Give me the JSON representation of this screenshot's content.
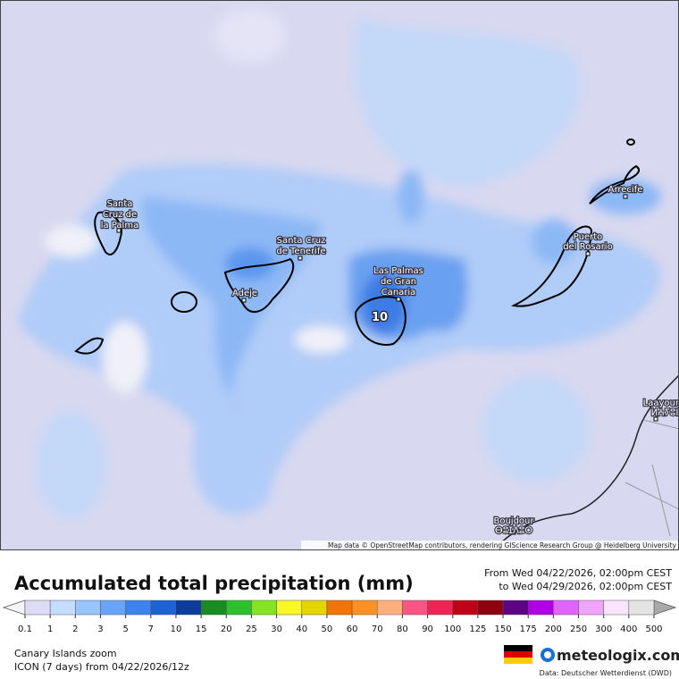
{
  "map": {
    "cities": [
      {
        "lines": [
          "Santa",
          "Cruz de",
          "la Palma"
        ]
      },
      {
        "lines": [
          "Santa Cruz",
          "de Tenerife"
        ]
      },
      {
        "lines": [
          "Adeje"
        ]
      },
      {
        "lines": [
          "Las Palmas",
          "de Gran",
          "Canaria"
        ]
      },
      {
        "lines": [
          "Puerto",
          "del Rosario"
        ]
      },
      {
        "lines": [
          "Arrecife"
        ]
      },
      {
        "lines": [
          "Laayoune",
          "ⵍⵄⵢⵓⵏ"
        ]
      },
      {
        "lines": [
          "Boujdour",
          "ⴱⵓⵊⴷⵓⵔ"
        ]
      }
    ],
    "contour_label": "10",
    "attribution": "Map data © OpenStreetMap contributors, rendering GIScience Research Group @ Heidelberg University"
  },
  "legend": {
    "title": "Accumulated total precipitation (mm)",
    "from": "From Wed 04/22/2026, 02:00pm CEST",
    "to": "to Wed 04/29/2026, 02:00pm CEST",
    "ticks": [
      0.1,
      1,
      2,
      3,
      5,
      7,
      10,
      15,
      20,
      25,
      30,
      40,
      50,
      60,
      70,
      80,
      90,
      100,
      125,
      150,
      175,
      200,
      250,
      300,
      400,
      500
    ],
    "colors": [
      "#dcdcf4",
      "#c4dcff",
      "#98c4ff",
      "#68a4fa",
      "#3c84ec",
      "#1c64d4",
      "#0c3c9c",
      "#188c20",
      "#2cc02c",
      "#84e424",
      "#f8f824",
      "#e4d400",
      "#f07400",
      "#ff9024",
      "#ffb07c",
      "#ff5484",
      "#f02454",
      "#c00014",
      "#8c0010",
      "#5c0484",
      "#b000e4",
      "#e064ff",
      "#f0a4ff",
      "#f8e4ff",
      "#e4e4e4"
    ]
  },
  "footer": {
    "region": "Canary Islands zoom",
    "model": "ICON (7 days)  from  04/22/2026/12z",
    "brand": "meteologix.com",
    "source": "Data: Deutscher Wetterdienst (DWD)"
  }
}
